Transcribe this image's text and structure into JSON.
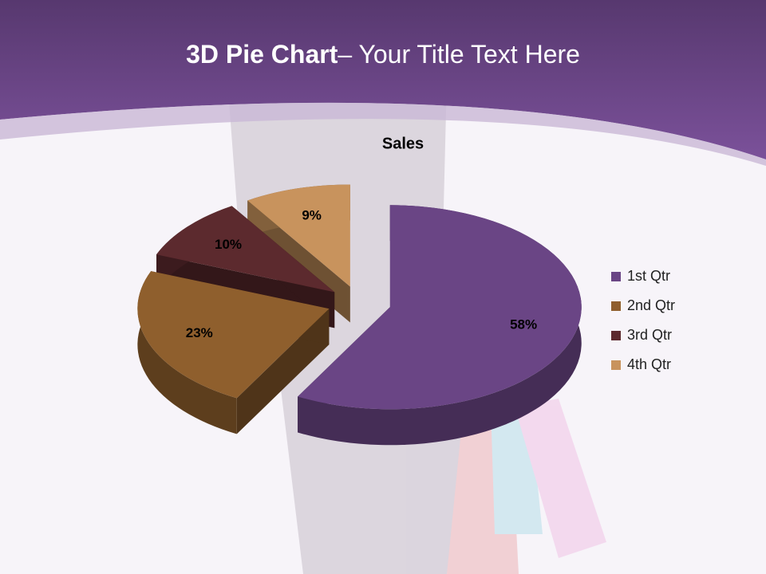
{
  "slide_title": {
    "bold": "3D Pie Chart",
    "rest": "– Your Title Text Here"
  },
  "chart_data": {
    "type": "pie3d",
    "title": "Sales",
    "categories": [
      "1st Qtr",
      "2nd Qtr",
      "3rd Qtr",
      "4th Qtr"
    ],
    "values": [
      58,
      23,
      10,
      9
    ],
    "value_labels": [
      "58%",
      "23%",
      "10%",
      "9%"
    ],
    "colors": [
      "#6a4585",
      "#8f5f2d",
      "#5c2a2e",
      "#c8935d"
    ],
    "legend": "right"
  }
}
